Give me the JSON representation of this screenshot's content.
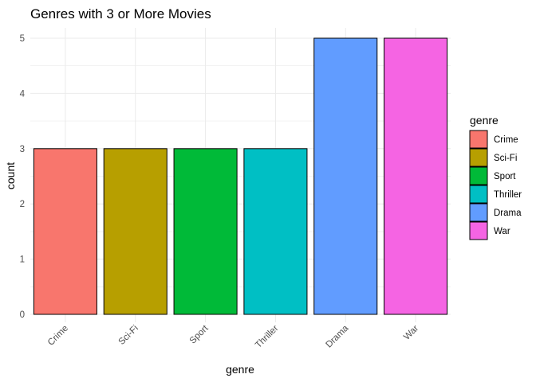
{
  "chart_data": {
    "type": "bar",
    "title": "Genres with 3 or More Movies",
    "xlabel": "genre",
    "ylabel": "count",
    "categories": [
      "Crime",
      "Sci-Fi",
      "Sport",
      "Thriller",
      "Drama",
      "War"
    ],
    "values": [
      3,
      3,
      3,
      3,
      5,
      5
    ],
    "colors": [
      "#F8766D",
      "#B79F00",
      "#00BA38",
      "#00BFC4",
      "#619CFF",
      "#F564E3"
    ],
    "bar_outline": "#000000",
    "ylim": [
      0,
      5.2
    ],
    "yticks": [
      0,
      1,
      2,
      3,
      4,
      5
    ],
    "grid": true,
    "grid_color": "#ebebeb",
    "x_tick_rotation": 45,
    "legend": {
      "title": "genre",
      "placement": "right",
      "entries": [
        "Crime",
        "Sci-Fi",
        "Sport",
        "Thriller",
        "Drama",
        "War"
      ]
    }
  }
}
